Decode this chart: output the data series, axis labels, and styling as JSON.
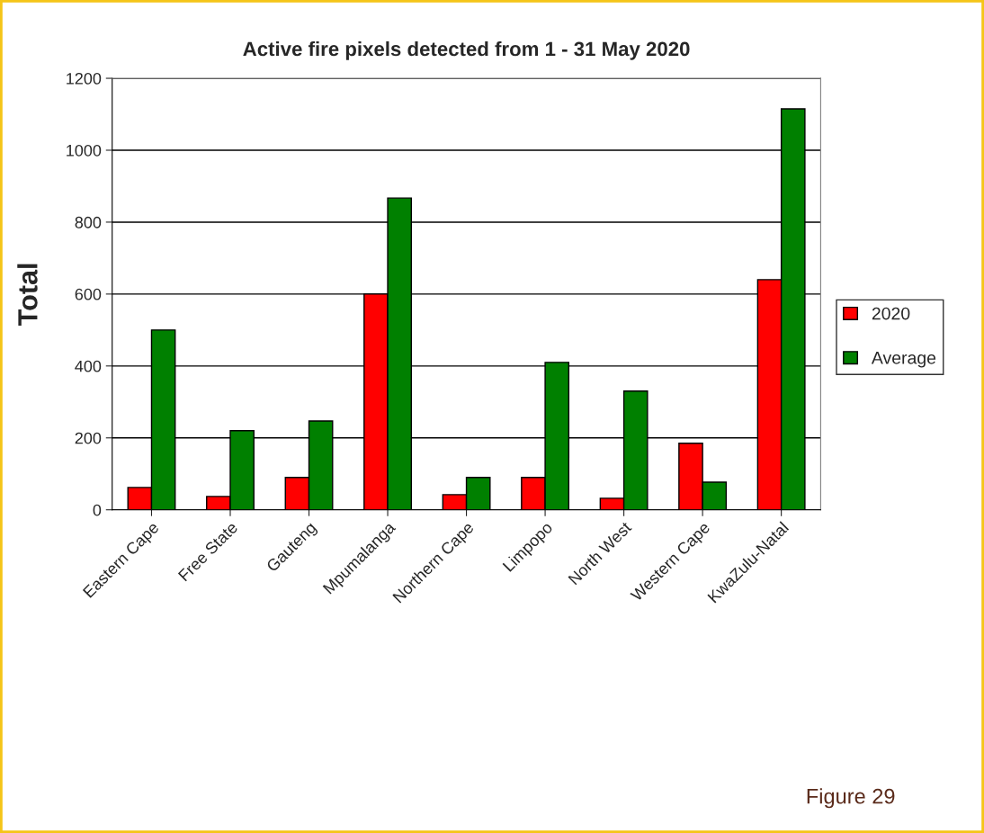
{
  "chart_data": {
    "type": "bar",
    "title": "Active fire pixels detected from 1 - 31 May 2020",
    "ylabel": "Total",
    "categories": [
      "Eastern Cape",
      "Free State",
      "Gauteng",
      "Mpumalanga",
      "Northern Cape",
      "Limpopo",
      "North West",
      "Western Cape",
      "KwaZulu-Natal"
    ],
    "series": [
      {
        "name": "2020",
        "color": "#ff0000",
        "values": [
          62,
          37,
          90,
          600,
          42,
          90,
          32,
          185,
          640
        ]
      },
      {
        "name": "Average",
        "color": "#008000",
        "values": [
          500,
          220,
          247,
          867,
          90,
          410,
          330,
          77,
          1115
        ]
      }
    ],
    "ylim": [
      0,
      1200
    ],
    "yticks": [
      0,
      200,
      400,
      600,
      800,
      1000,
      1200
    ],
    "grid": "y",
    "legend": "right",
    "annotations": [
      "Figure 29"
    ]
  }
}
